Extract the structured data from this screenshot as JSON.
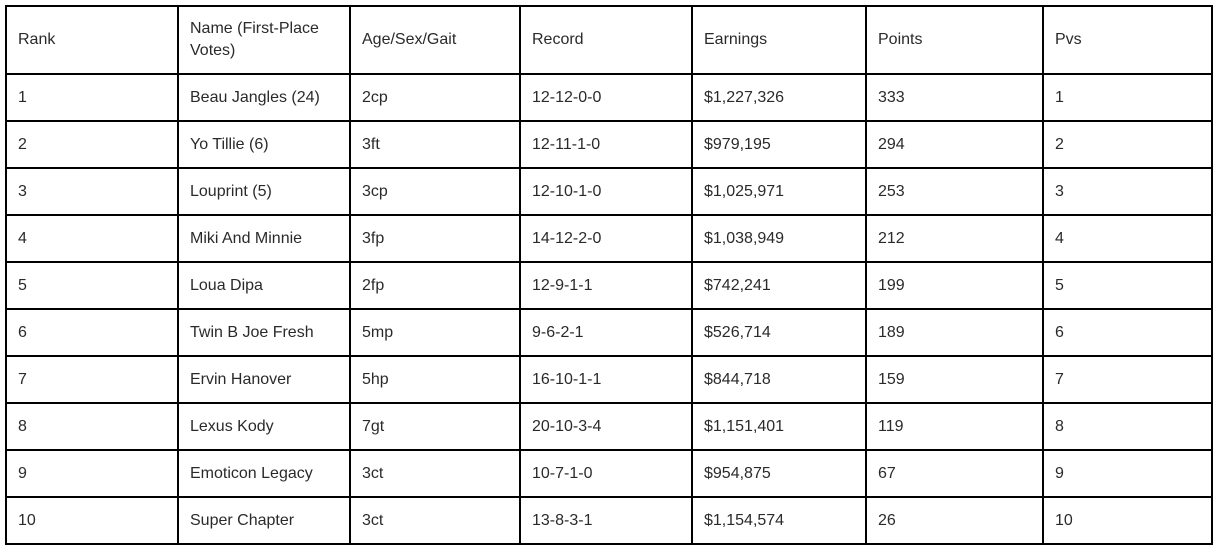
{
  "chart_data": {
    "type": "table",
    "columns": [
      "Rank",
      "Name (First-Place Votes)",
      "Age/Sex/Gait",
      "Record",
      "Earnings",
      "Points",
      "Pvs"
    ],
    "rows": [
      {
        "rank": "1",
        "name": "Beau Jangles (24)",
        "age_sex_gait": "2cp",
        "record": "12-12-0-0",
        "earnings": "$1,227,326",
        "points": "333",
        "pvs": "1"
      },
      {
        "rank": "2",
        "name": "Yo Tillie (6)",
        "age_sex_gait": "3ft",
        "record": "12-11-1-0",
        "earnings": "$979,195",
        "points": "294",
        "pvs": "2"
      },
      {
        "rank": "3",
        "name": "Louprint (5)",
        "age_sex_gait": "3cp",
        "record": "12-10-1-0",
        "earnings": "$1,025,971",
        "points": "253",
        "pvs": "3"
      },
      {
        "rank": "4",
        "name": "Miki And Minnie",
        "age_sex_gait": "3fp",
        "record": "14-12-2-0",
        "earnings": "$1,038,949",
        "points": "212",
        "pvs": "4"
      },
      {
        "rank": "5",
        "name": "Loua Dipa",
        "age_sex_gait": "2fp",
        "record": "12-9-1-1",
        "earnings": "$742,241",
        "points": "199",
        "pvs": "5"
      },
      {
        "rank": "6",
        "name": "Twin B Joe Fresh",
        "age_sex_gait": "5mp",
        "record": "9-6-2-1",
        "earnings": "$526,714",
        "points": "189",
        "pvs": "6"
      },
      {
        "rank": "7",
        "name": "Ervin Hanover",
        "age_sex_gait": "5hp",
        "record": "16-10-1-1",
        "earnings": "$844,718",
        "points": "159",
        "pvs": "7"
      },
      {
        "rank": "8",
        "name": "Lexus Kody",
        "age_sex_gait": "7gt",
        "record": "20-10-3-4",
        "earnings": "$1,151,401",
        "points": "119",
        "pvs": "8"
      },
      {
        "rank": "9",
        "name": "Emoticon Legacy",
        "age_sex_gait": "3ct",
        "record": "10-7-1-0",
        "earnings": "$954,875",
        "points": "67",
        "pvs": "9"
      },
      {
        "rank": "10",
        "name": "Super Chapter",
        "age_sex_gait": "3ct",
        "record": "13-8-3-1",
        "earnings": "$1,154,574",
        "points": "26",
        "pvs": "10"
      }
    ]
  },
  "colors": {
    "border": "#000000",
    "text": "#2a2a2a",
    "background": "#ffffff"
  }
}
